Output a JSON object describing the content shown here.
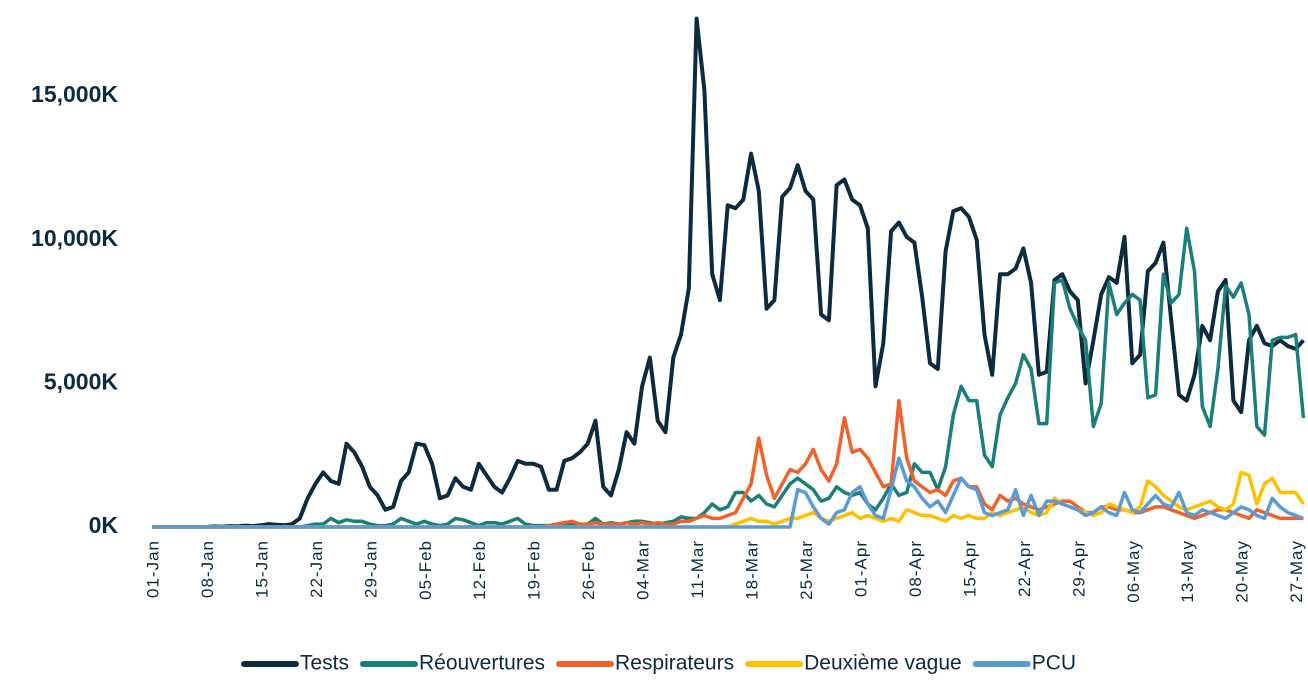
{
  "chart_data": {
    "type": "line",
    "categories": [
      "01-Jan",
      null,
      null,
      null,
      null,
      null,
      null,
      "08-Jan",
      null,
      null,
      null,
      null,
      null,
      null,
      "15-Jan",
      null,
      null,
      null,
      null,
      null,
      null,
      "22-Jan",
      null,
      null,
      null,
      null,
      null,
      null,
      "29-Jan",
      null,
      null,
      null,
      null,
      null,
      null,
      "05-Feb",
      null,
      null,
      null,
      null,
      null,
      null,
      "12-Feb",
      null,
      null,
      null,
      null,
      null,
      null,
      "19-Feb",
      null,
      null,
      null,
      null,
      null,
      null,
      "26-Feb",
      null,
      null,
      null,
      null,
      null,
      null,
      "04-Mar",
      null,
      null,
      null,
      null,
      null,
      null,
      "11-Mar",
      null,
      null,
      null,
      null,
      null,
      null,
      "18-Mar",
      null,
      null,
      null,
      null,
      null,
      null,
      "25-Mar",
      null,
      null,
      null,
      null,
      null,
      null,
      "01-Apr",
      null,
      null,
      null,
      null,
      null,
      null,
      "08-Apr",
      null,
      null,
      null,
      null,
      null,
      null,
      "15-Apr",
      null,
      null,
      null,
      null,
      null,
      null,
      "22-Apr",
      null,
      null,
      null,
      null,
      null,
      null,
      "29-Apr",
      null,
      null,
      null,
      null,
      null,
      null,
      "06-May",
      null,
      null,
      null,
      null,
      null,
      null,
      "13-May",
      null,
      null,
      null,
      null,
      null,
      null,
      "20-May",
      null,
      null,
      null,
      null,
      null,
      null,
      "27-May",
      null
    ],
    "series": [
      {
        "name": "Tests",
        "color": "#0d2b3e",
        "values": [
          0,
          0,
          0,
          0,
          0,
          0,
          0,
          0,
          20,
          10,
          30,
          20,
          50,
          30,
          60,
          100,
          80,
          60,
          100,
          300,
          1000,
          1500,
          1900,
          1600,
          1500,
          2900,
          2600,
          2100,
          1400,
          1100,
          600,
          700,
          1600,
          1900,
          2900,
          2850,
          2200,
          1000,
          1100,
          1700,
          1400,
          1300,
          2200,
          1800,
          1400,
          1200,
          1700,
          2300,
          2200,
          2200,
          2100,
          1300,
          1300,
          2300,
          2400,
          2600,
          2900,
          3700,
          1400,
          1100,
          2000,
          3300,
          2900,
          4900,
          5900,
          3700,
          3300,
          5900,
          6700,
          8300,
          17700,
          15200,
          8800,
          7900,
          11200,
          11100,
          11400,
          13000,
          11700,
          7600,
          7900,
          11500,
          11800,
          12600,
          11700,
          11400,
          7400,
          7200,
          11900,
          12100,
          11400,
          11200,
          10400,
          4900,
          6400,
          10300,
          10600,
          10100,
          9900,
          8000,
          5700,
          5500,
          9600,
          11000,
          11100,
          10800,
          10000,
          6700,
          5300,
          8800,
          8800,
          9000,
          9700,
          8500,
          5300,
          5400,
          8600,
          8800,
          8200,
          7900,
          5000,
          6500,
          8100,
          8700,
          8500,
          10100,
          5700,
          6000,
          8900,
          9200,
          9900,
          7200,
          4600,
          4400,
          5300,
          7000,
          6500,
          8200,
          8600,
          4400,
          4000,
          6500,
          7000,
          6400,
          6300,
          6500,
          6300,
          6200,
          6500
        ]
      },
      {
        "name": "Réouvertures",
        "color": "#1a7f78",
        "values": [
          0,
          0,
          0,
          0,
          0,
          0,
          0,
          0,
          0,
          0,
          0,
          0,
          0,
          0,
          0,
          0,
          0,
          0,
          0,
          0,
          50,
          100,
          100,
          300,
          150,
          250,
          200,
          200,
          100,
          50,
          50,
          100,
          300,
          200,
          100,
          200,
          100,
          50,
          100,
          300,
          250,
          150,
          50,
          150,
          150,
          100,
          200,
          300,
          100,
          50,
          50,
          50,
          50,
          100,
          100,
          50,
          100,
          300,
          100,
          150,
          100,
          150,
          200,
          200,
          150,
          100,
          150,
          200,
          350,
          300,
          300,
          500,
          800,
          600,
          700,
          1200,
          1200,
          900,
          1100,
          800,
          700,
          1100,
          1500,
          1700,
          1500,
          1300,
          900,
          1000,
          1400,
          1200,
          1100,
          1200,
          800,
          600,
          1000,
          1500,
          1100,
          1200,
          2200,
          1900,
          1900,
          1300,
          2100,
          3900,
          4900,
          4400,
          4400,
          2500,
          2100,
          3900,
          4500,
          5000,
          6000,
          5500,
          3600,
          3600,
          8500,
          8600,
          7600,
          7000,
          6500,
          3500,
          4300,
          8500,
          7400,
          7800,
          8100,
          7900,
          4500,
          4600,
          8800,
          7800,
          8100,
          10400,
          8900,
          4200,
          3500,
          5500,
          8400,
          8000,
          8500,
          7400,
          3500,
          3200,
          6500,
          6600,
          6600,
          6700,
          3800
        ]
      },
      {
        "name": "Respirateurs",
        "color": "#f0622a",
        "values": [
          0,
          0,
          0,
          0,
          0,
          0,
          0,
          0,
          0,
          0,
          0,
          0,
          0,
          0,
          0,
          0,
          0,
          0,
          0,
          0,
          0,
          0,
          0,
          0,
          0,
          0,
          0,
          0,
          0,
          0,
          0,
          0,
          0,
          0,
          0,
          0,
          0,
          0,
          0,
          0,
          0,
          0,
          0,
          0,
          0,
          0,
          0,
          0,
          0,
          0,
          0,
          50,
          100,
          150,
          200,
          100,
          100,
          150,
          100,
          100,
          100,
          150,
          100,
          150,
          100,
          150,
          100,
          100,
          200,
          200,
          300,
          400,
          300,
          300,
          400,
          500,
          1000,
          1500,
          3100,
          1800,
          1000,
          1500,
          2000,
          1900,
          2200,
          2700,
          2000,
          1600,
          2200,
          3800,
          2600,
          2700,
          2400,
          1900,
          1400,
          1500,
          4400,
          2400,
          1600,
          1400,
          1200,
          1300,
          1100,
          1600,
          1700,
          1400,
          1400,
          800,
          600,
          1100,
          900,
          1000,
          800,
          700,
          600,
          700,
          800,
          900,
          900,
          700,
          500,
          500,
          700,
          700,
          600,
          600,
          500,
          500,
          600,
          700,
          700,
          600,
          500,
          400,
          300,
          400,
          500,
          600,
          600,
          500,
          400,
          300,
          600,
          500,
          400,
          300,
          300,
          300,
          300
        ]
      },
      {
        "name": "Deuxième vague",
        "color": "#ffc000",
        "values": [
          0,
          0,
          0,
          0,
          0,
          0,
          0,
          0,
          0,
          0,
          0,
          0,
          0,
          0,
          0,
          0,
          0,
          0,
          0,
          0,
          0,
          0,
          0,
          0,
          0,
          0,
          0,
          0,
          0,
          0,
          0,
          0,
          0,
          0,
          0,
          0,
          0,
          0,
          0,
          0,
          0,
          0,
          0,
          0,
          0,
          0,
          0,
          0,
          0,
          0,
          0,
          0,
          0,
          0,
          0,
          0,
          0,
          0,
          0,
          0,
          0,
          0,
          0,
          0,
          0,
          0,
          0,
          0,
          0,
          0,
          0,
          0,
          0,
          0,
          0,
          100,
          200,
          300,
          200,
          200,
          100,
          200,
          300,
          300,
          400,
          500,
          300,
          200,
          300,
          400,
          500,
          300,
          400,
          300,
          200,
          300,
          200,
          600,
          500,
          400,
          400,
          300,
          200,
          400,
          300,
          400,
          300,
          300,
          500,
          400,
          500,
          600,
          700,
          500,
          400,
          500,
          1000,
          800,
          700,
          600,
          500,
          400,
          500,
          800,
          700,
          600,
          500,
          700,
          1600,
          1400,
          1100,
          900,
          700,
          600,
          700,
          800,
          900,
          700,
          600,
          800,
          1900,
          1800,
          800,
          1500,
          1700,
          1200,
          1200,
          1200,
          800
        ]
      },
      {
        "name": "PCU",
        "color": "#5b9bd5",
        "values": [
          0,
          0,
          0,
          0,
          0,
          0,
          0,
          0,
          0,
          0,
          0,
          0,
          0,
          0,
          0,
          0,
          0,
          0,
          0,
          0,
          0,
          0,
          0,
          0,
          0,
          0,
          0,
          0,
          0,
          0,
          0,
          0,
          0,
          0,
          0,
          0,
          0,
          0,
          0,
          0,
          0,
          0,
          0,
          0,
          0,
          0,
          0,
          0,
          0,
          0,
          0,
          0,
          0,
          0,
          0,
          0,
          0,
          0,
          0,
          0,
          0,
          0,
          0,
          0,
          0,
          0,
          0,
          0,
          0,
          0,
          0,
          0,
          0,
          0,
          0,
          0,
          0,
          0,
          0,
          0,
          0,
          0,
          0,
          1300,
          1200,
          700,
          300,
          100,
          500,
          600,
          1200,
          1400,
          800,
          400,
          300,
          1300,
          2400,
          1600,
          1400,
          1000,
          700,
          900,
          500,
          1100,
          1700,
          1400,
          1300,
          500,
          400,
          500,
          600,
          1300,
          400,
          1100,
          400,
          900,
          900,
          800,
          700,
          600,
          400,
          500,
          700,
          500,
          400,
          1200,
          600,
          500,
          800,
          1100,
          800,
          700,
          1200,
          500,
          400,
          600,
          500,
          400,
          300,
          500,
          700,
          600,
          400,
          300,
          1000,
          700,
          500,
          400,
          300
        ]
      }
    ],
    "ylim": [
      0,
      18000
    ],
    "yticks": [
      {
        "value": 0,
        "label": "0K"
      },
      {
        "value": 5000,
        "label": "5,000K"
      },
      {
        "value": 10000,
        "label": "10,000K"
      },
      {
        "value": 15000,
        "label": "15,000K"
      }
    ],
    "grid": false,
    "legend": "bottom"
  }
}
